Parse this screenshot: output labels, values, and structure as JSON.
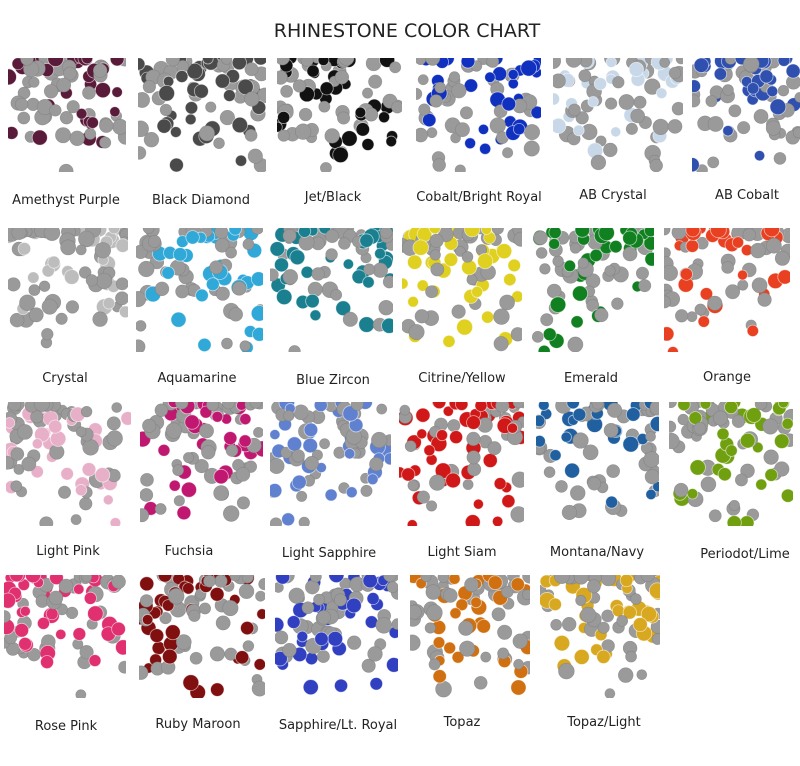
{
  "title": "RHINESTONE COLOR CHART",
  "swatches": [
    {
      "label": "Amethyst Purple",
      "color": "#5a1a3a"
    },
    {
      "label": "Black Diamond",
      "color": "#4a4a4a"
    },
    {
      "label": "Jet/Black",
      "color": "#111111"
    },
    {
      "label": "Cobalt/Bright Royal",
      "color": "#1030c0"
    },
    {
      "label": "AB Crystal",
      "color": "#c8d8e8"
    },
    {
      "label": "AB Cobalt",
      "color": "#3050b0"
    },
    {
      "label": "Crystal",
      "color": "#bdbdbd"
    },
    {
      "label": "Aquamarine",
      "color": "#30a8d8"
    },
    {
      "label": "Blue Zircon",
      "color": "#1a8090"
    },
    {
      "label": "Citrine/Yellow",
      "color": "#e0d020"
    },
    {
      "label": "Emerald",
      "color": "#108020"
    },
    {
      "label": "Orange",
      "color": "#e84020"
    },
    {
      "label": "Light Pink",
      "color": "#e8b0c8"
    },
    {
      "label": "Fuchsia",
      "color": "#c01870"
    },
    {
      "label": "Light Sapphire",
      "color": "#6080d0"
    },
    {
      "label": "Light Siam",
      "color": "#d01818"
    },
    {
      "label": "Montana/Navy",
      "color": "#2060a0"
    },
    {
      "label": "Periodot/Lime",
      "color": "#70a010"
    },
    {
      "label": "Rose Pink",
      "color": "#e03070"
    },
    {
      "label": "Ruby Maroon",
      "color": "#801010"
    },
    {
      "label": "Sapphire/Lt. Royal",
      "color": "#3040c0"
    },
    {
      "label": "Topaz",
      "color": "#d07010"
    },
    {
      "label": "Topaz/Light",
      "color": "#d8a820"
    }
  ]
}
